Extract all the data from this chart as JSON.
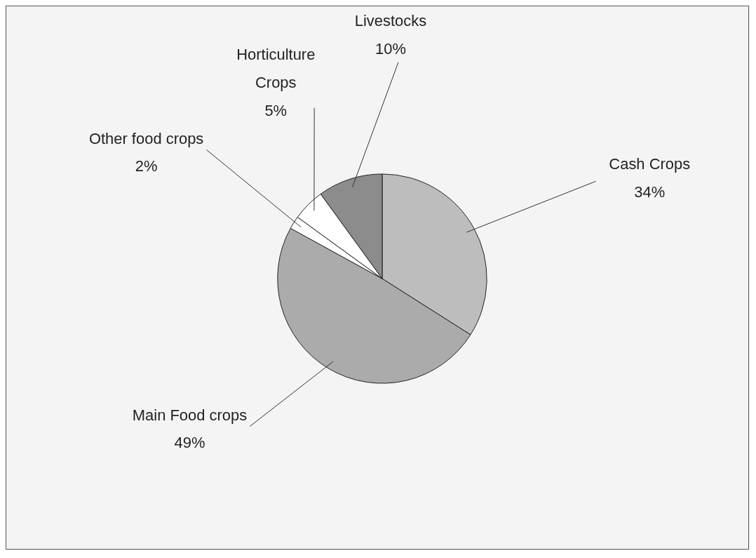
{
  "chart_data": {
    "type": "pie",
    "categories": [
      "Cash Crops",
      "Main Food crops",
      "Other food crops",
      "Horticulture Crops",
      "Livestocks"
    ],
    "values": [
      34,
      49,
      2,
      5,
      10
    ],
    "value_labels": [
      "34%",
      "49%",
      "2%",
      "5%",
      "10%"
    ],
    "colors": [
      "#bdbdbd",
      "#ababab",
      "#ffffff",
      "#ffffff",
      "#8c8c8c"
    ],
    "legend": false
  }
}
